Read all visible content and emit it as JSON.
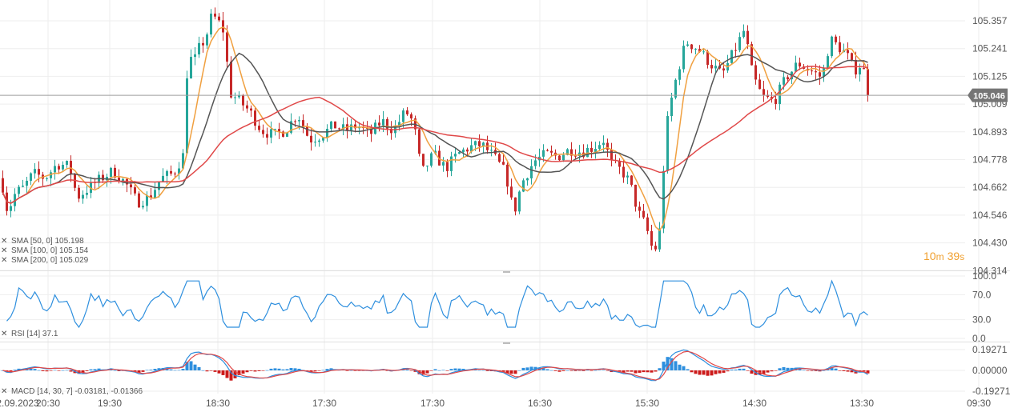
{
  "chart_data": [
    {
      "type": "candlestick",
      "panel": "price",
      "current_price": 105.046,
      "y_ticks": [
        "105.357",
        "105.241",
        "105.125",
        "105.009",
        "104.893",
        "104.778",
        "104.662",
        "104.546",
        "104.430",
        "104.314"
      ],
      "ylim": [
        104.3,
        105.42
      ],
      "x_ticks": [
        "2.09.2023",
        "20:30",
        "19:30",
        "18:30",
        "17:30",
        "17:30",
        "16:30",
        "15:30",
        "14:30",
        "13:30",
        "09:30"
      ],
      "indicators": [
        {
          "name": "SMA",
          "params": "[50, 0]",
          "value": "105.198",
          "color": "#f0a040"
        },
        {
          "name": "SMA",
          "params": "[100, 0]",
          "value": "105.154",
          "color": "#555555"
        },
        {
          "name": "SMA",
          "params": "[200, 0]",
          "value": "105.029",
          "color": "#e04848"
        }
      ],
      "timer": {
        "minutes": "10",
        "m_label": "m",
        "seconds": "39",
        "s_label": "s"
      },
      "anchors": [
        [
          0,
          104.7
        ],
        [
          8,
          104.56
        ],
        [
          18,
          104.64
        ],
        [
          28,
          104.66
        ],
        [
          40,
          104.72
        ],
        [
          55,
          104.7
        ],
        [
          70,
          104.76
        ],
        [
          85,
          104.75
        ],
        [
          95,
          104.62
        ],
        [
          110,
          104.66
        ],
        [
          125,
          104.7
        ],
        [
          140,
          104.73
        ],
        [
          155,
          104.68
        ],
        [
          170,
          104.6
        ],
        [
          185,
          104.62
        ],
        [
          200,
          104.7
        ],
        [
          215,
          104.72
        ],
        [
          228,
          104.8
        ],
        [
          233,
          105.22
        ],
        [
          240,
          105.18
        ],
        [
          248,
          105.25
        ],
        [
          255,
          105.28
        ],
        [
          263,
          105.38
        ],
        [
          270,
          105.36
        ],
        [
          280,
          105.3
        ],
        [
          284,
          105.06
        ],
        [
          295,
          105.03
        ],
        [
          310,
          104.98
        ],
        [
          325,
          104.9
        ],
        [
          340,
          104.88
        ],
        [
          355,
          104.9
        ],
        [
          370,
          104.97
        ],
        [
          385,
          104.86
        ],
        [
          400,
          104.88
        ],
        [
          415,
          104.92
        ],
        [
          430,
          104.9
        ],
        [
          445,
          104.92
        ],
        [
          460,
          104.88
        ],
        [
          475,
          104.94
        ],
        [
          490,
          104.9
        ],
        [
          505,
          104.98
        ],
        [
          515,
          104.93
        ],
        [
          525,
          104.72
        ],
        [
          540,
          104.8
        ],
        [
          555,
          104.74
        ],
        [
          570,
          104.8
        ],
        [
          585,
          104.83
        ],
        [
          600,
          104.84
        ],
        [
          615,
          104.79
        ],
        [
          630,
          104.72
        ],
        [
          640,
          104.55
        ],
        [
          650,
          104.68
        ],
        [
          665,
          104.77
        ],
        [
          680,
          104.8
        ],
        [
          695,
          104.79
        ],
        [
          710,
          104.82
        ],
        [
          725,
          104.81
        ],
        [
          740,
          104.83
        ],
        [
          752,
          104.86
        ],
        [
          762,
          104.76
        ],
        [
          775,
          104.73
        ],
        [
          785,
          104.68
        ],
        [
          795,
          104.56
        ],
        [
          805,
          104.5
        ],
        [
          815,
          104.38
        ],
        [
          822,
          104.48
        ],
        [
          830,
          104.9
        ],
        [
          838,
          105.05
        ],
        [
          845,
          105.15
        ],
        [
          855,
          105.27
        ],
        [
          870,
          105.24
        ],
        [
          885,
          105.18
        ],
        [
          900,
          105.13
        ],
        [
          915,
          105.23
        ],
        [
          928,
          105.32
        ],
        [
          938,
          105.13
        ],
        [
          950,
          105.04
        ],
        [
          965,
          105.02
        ],
        [
          980,
          105.12
        ],
        [
          995,
          105.18
        ],
        [
          1010,
          105.15
        ],
        [
          1025,
          105.12
        ],
        [
          1035,
          105.28
        ],
        [
          1045,
          105.25
        ],
        [
          1055,
          105.22
        ],
        [
          1065,
          105.15
        ],
        [
          1075,
          105.18
        ],
        [
          1083,
          105.04
        ]
      ]
    },
    {
      "type": "line",
      "panel": "rsi",
      "indicator": {
        "name": "RSI",
        "params": "[14]",
        "value": "37.1",
        "color": "#2e8fde"
      },
      "y_ticks": [
        "100.0",
        "70.0",
        "30.0",
        "0.0"
      ],
      "ylim": [
        0,
        100
      ]
    },
    {
      "type": "bar+line",
      "panel": "macd",
      "indicator": {
        "name": "MACD",
        "params": "[14, 30, 7]",
        "value": "-0.03181,  -0.01366"
      },
      "y_ticks": [
        "0.19271",
        "0.00000",
        "-0.19271"
      ],
      "ylim": [
        -0.22,
        0.22
      ],
      "line_colors": [
        "#2e8fde",
        "#e04848"
      ],
      "hist_colors": {
        "positive": "#2e8fde",
        "negative": "#cc1a1a"
      }
    }
  ],
  "colors": {
    "bull": "#26a69a",
    "bear": "#c62828",
    "price_line": "#9e9e9e",
    "price_tag_bg": "#757575",
    "grid": "#eeeeee",
    "separator": "#e6e6e6"
  }
}
